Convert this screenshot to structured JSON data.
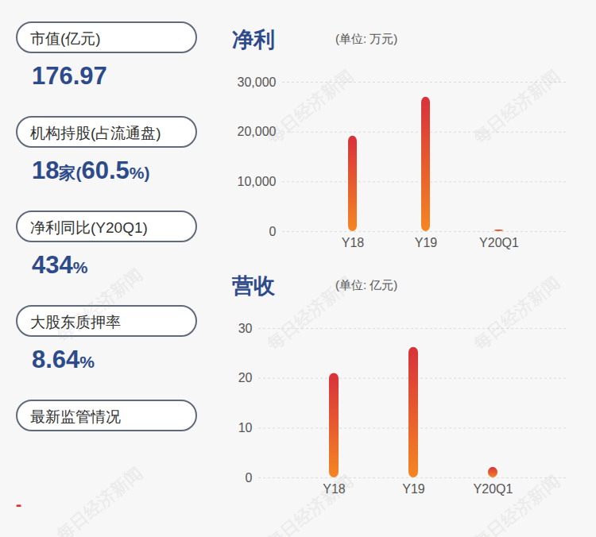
{
  "cards": [
    {
      "label": "市值(亿元)",
      "value": "176.97"
    },
    {
      "label": "机构持股(占流通盘)",
      "value": "18家(60.5%)"
    },
    {
      "label": "净利同比(Y20Q1)",
      "value": "434%"
    },
    {
      "label": "大股东质押率",
      "value": "8.64%"
    },
    {
      "label": "最新监管情况"
    }
  ],
  "footer": "-",
  "watermark": "每日经济新闻",
  "chart_data": [
    {
      "type": "bar",
      "title": "净利",
      "subtitle": "(单位: 万元)",
      "categories": [
        "Y18",
        "Y19",
        "Y20Q1"
      ],
      "values": [
        19200,
        27000,
        300
      ],
      "color": "#d8313b",
      "ylim": [
        0,
        30000
      ],
      "yticks": [
        0,
        {
          "value": 10000,
          "label": "10,000"
        },
        {
          "value": 20000,
          "label": "20,000"
        },
        {
          "value": 30000,
          "label": "30,000"
        }
      ],
      "grid": true
    },
    {
      "type": "bar",
      "title": "营收",
      "subtitle": "(单位: 亿元)",
      "categories": [
        "Y18",
        "Y19",
        "Y20Q1"
      ],
      "values": [
        21,
        26.2,
        2.1
      ],
      "color": "#d8313b",
      "ylim": [
        0,
        30
      ],
      "yticks": [
        0,
        10,
        20,
        30
      ],
      "grid": true
    }
  ]
}
